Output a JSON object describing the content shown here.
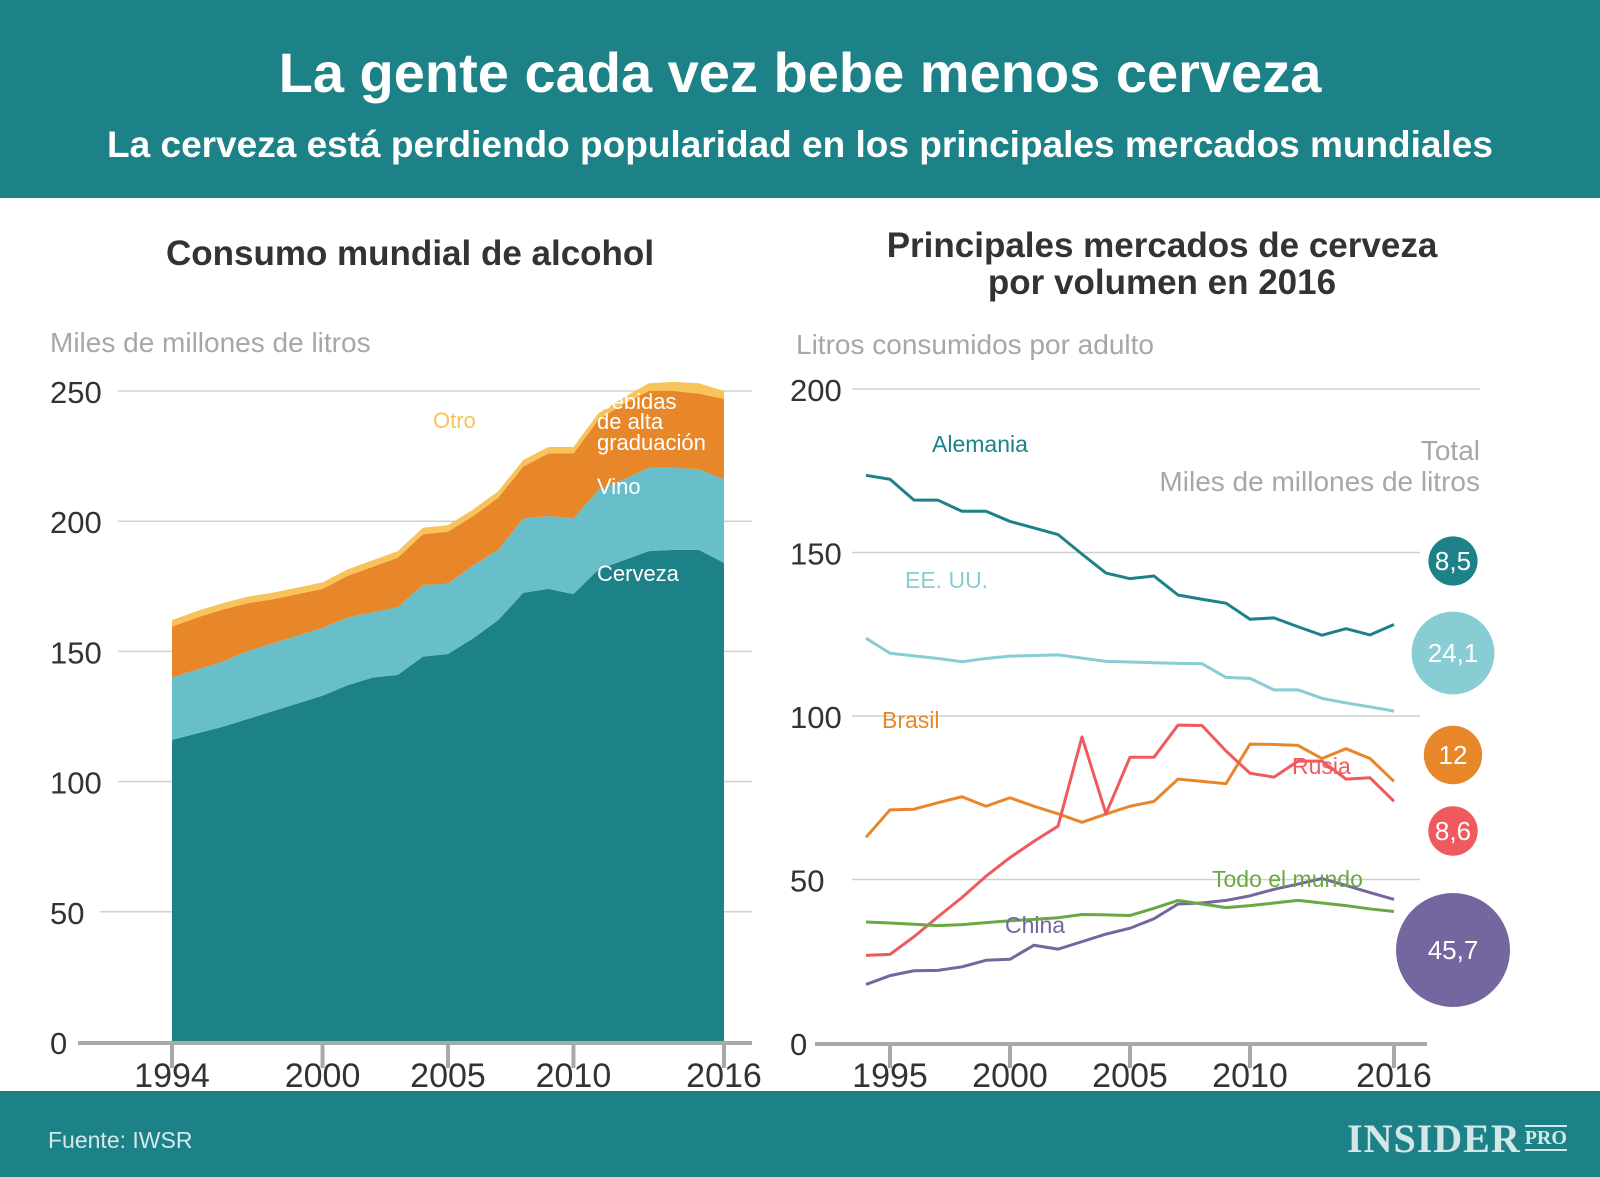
{
  "header": {
    "title": "La gente cada vez bebe menos cerveza",
    "subtitle": "La cerveza está perdiendo popularidad en los principales mercados mundiales"
  },
  "footer": {
    "source": "Fuente: IWSR",
    "logo": "INSIDER",
    "logo_suffix": "PRO"
  },
  "chart_data": [
    {
      "type": "area",
      "stacked": true,
      "title": "Consumo mundial de alcohol",
      "ylabel": "Miles de millones de litros",
      "ylim": [
        0,
        250
      ],
      "yticks": [
        "0",
        "50",
        "100",
        "150",
        "200",
        "250"
      ],
      "xticks": [
        "1994",
        "2000",
        "2005",
        "2010",
        "2016"
      ],
      "grid": true,
      "x": [
        1994,
        1995,
        1996,
        1997,
        1998,
        1999,
        2000,
        2001,
        2002,
        2003,
        2004,
        2005,
        2006,
        2007,
        2008,
        2009,
        2010,
        2011,
        2012,
        2013,
        2014,
        2015,
        2016
      ],
      "series": [
        {
          "name": "Cerveza",
          "color": "#1d8288",
          "values": [
            116,
            118.5,
            121,
            124,
            127,
            130,
            133,
            137,
            140,
            141,
            148,
            149,
            155,
            162,
            172.5,
            174,
            172,
            181.5,
            185,
            188.5,
            189,
            189,
            184
          ]
        },
        {
          "name": "Vino",
          "color": "#68bfc9",
          "values": [
            24,
            24.5,
            25,
            26,
            26,
            26,
            26,
            26,
            25,
            26,
            27.5,
            27,
            28,
            27,
            28.5,
            28,
            29,
            30.5,
            31,
            32,
            31.5,
            31,
            32
          ]
        },
        {
          "name": "Bebidas de alta graduación",
          "label_lines": [
            "Bebidas",
            "de alta",
            "graduación"
          ],
          "color": "#e8872a",
          "values": [
            19.5,
            20,
            20,
            18.5,
            17,
            16,
            15,
            16,
            17.5,
            19,
            19.5,
            20,
            19,
            20,
            20,
            24,
            25,
            27,
            29,
            29.5,
            29.5,
            29,
            31
          ]
        },
        {
          "name": "Otro",
          "color": "#f7c35a",
          "values": [
            2.5,
            2.5,
            2.5,
            2.5,
            2.5,
            2.5,
            2.5,
            2.5,
            2.5,
            2.5,
            2.5,
            2.5,
            2.5,
            2.5,
            2.5,
            2.5,
            2.5,
            2.5,
            2.5,
            3,
            3.5,
            4,
            3
          ]
        }
      ]
    },
    {
      "type": "line",
      "title": "Principales mercados de cerveza por volumen en 2016",
      "title_lines": [
        "Principales mercados de cerveza",
        "por volumen en 2016"
      ],
      "ylabel": "Litros consumidos por adulto",
      "ylim": [
        0,
        200
      ],
      "yticks": [
        "0",
        "50",
        "100",
        "150",
        "200"
      ],
      "xticks": [
        "1995",
        "2000",
        "2005",
        "2010",
        "2016"
      ],
      "grid": true,
      "x": [
        1994,
        1995,
        1996,
        1997,
        1998,
        1999,
        2000,
        2001,
        2002,
        2003,
        2004,
        2005,
        2006,
        2007,
        2008,
        2009,
        2010,
        2011,
        2012,
        2013,
        2014,
        2015,
        2016
      ],
      "series": [
        {
          "name": "Alemania",
          "color": "#1d8288",
          "total": "8,5",
          "total_value": 8.5,
          "values": [
            173.6,
            172.4,
            166,
            166,
            162.6,
            162.6,
            159.5,
            157.5,
            155.5,
            149.5,
            143.7,
            142,
            142.8,
            137,
            135.7,
            134.5,
            129.6,
            130,
            127.3,
            124.7,
            126.7,
            124.8,
            128
          ]
        },
        {
          "name": "EE. UU.",
          "color": "#88cdd4",
          "total": "24,1",
          "total_value": 24.1,
          "values": [
            123.8,
            119.2,
            118.4,
            117.6,
            116.6,
            117.6,
            118.3,
            118.5,
            118.7,
            117.7,
            116.7,
            116.5,
            116.3,
            116.1,
            116,
            111.8,
            111.5,
            108,
            108,
            105.4,
            104,
            102.8,
            101.5
          ]
        },
        {
          "name": "Brasil",
          "color": "#e8872a",
          "total": "12",
          "total_value": 12,
          "values": [
            62.9,
            71.3,
            71.5,
            73.5,
            75.3,
            72.4,
            75,
            72.4,
            70.1,
            67.5,
            70,
            72.4,
            73.9,
            80.7,
            80,
            79.3,
            91.4,
            91.3,
            91,
            87,
            90,
            87,
            80
          ]
        },
        {
          "name": "Rusia",
          "color": "#ef5a5e",
          "total": "8,6",
          "total_value": 8.6,
          "values": [
            26.8,
            27.1,
            32.5,
            38.6,
            44.5,
            51,
            56.7,
            61.7,
            66.3,
            93.6,
            70.1,
            87.4,
            87.4,
            97.2,
            97.1,
            89.3,
            82.5,
            81.3,
            86.2,
            86.2,
            80.7,
            81.1,
            73.9
          ]
        },
        {
          "name": "China",
          "color": "#74669e",
          "total": "45,7",
          "total_value": 45.7,
          "values": [
            17.9,
            20.6,
            22.1,
            22.2,
            23.3,
            25.3,
            25.6,
            29.9,
            28.7,
            31,
            33.3,
            35.1,
            38,
            42.5,
            42.8,
            43.6,
            45,
            47,
            48.6,
            50.3,
            48.2,
            46,
            43.9
          ]
        },
        {
          "name": "Todo el mundo",
          "color": "#6aa842",
          "values": [
            37,
            36.7,
            36.3,
            35.9,
            36.2,
            36.8,
            37.4,
            37.8,
            38.3,
            39.3,
            39.2,
            39,
            41.2,
            43.6,
            42.5,
            41.4,
            42,
            42.8,
            43.6,
            42.8,
            42,
            41,
            40.2
          ]
        }
      ],
      "totals_header": [
        "Total",
        "Miles de millones de litros"
      ]
    }
  ]
}
